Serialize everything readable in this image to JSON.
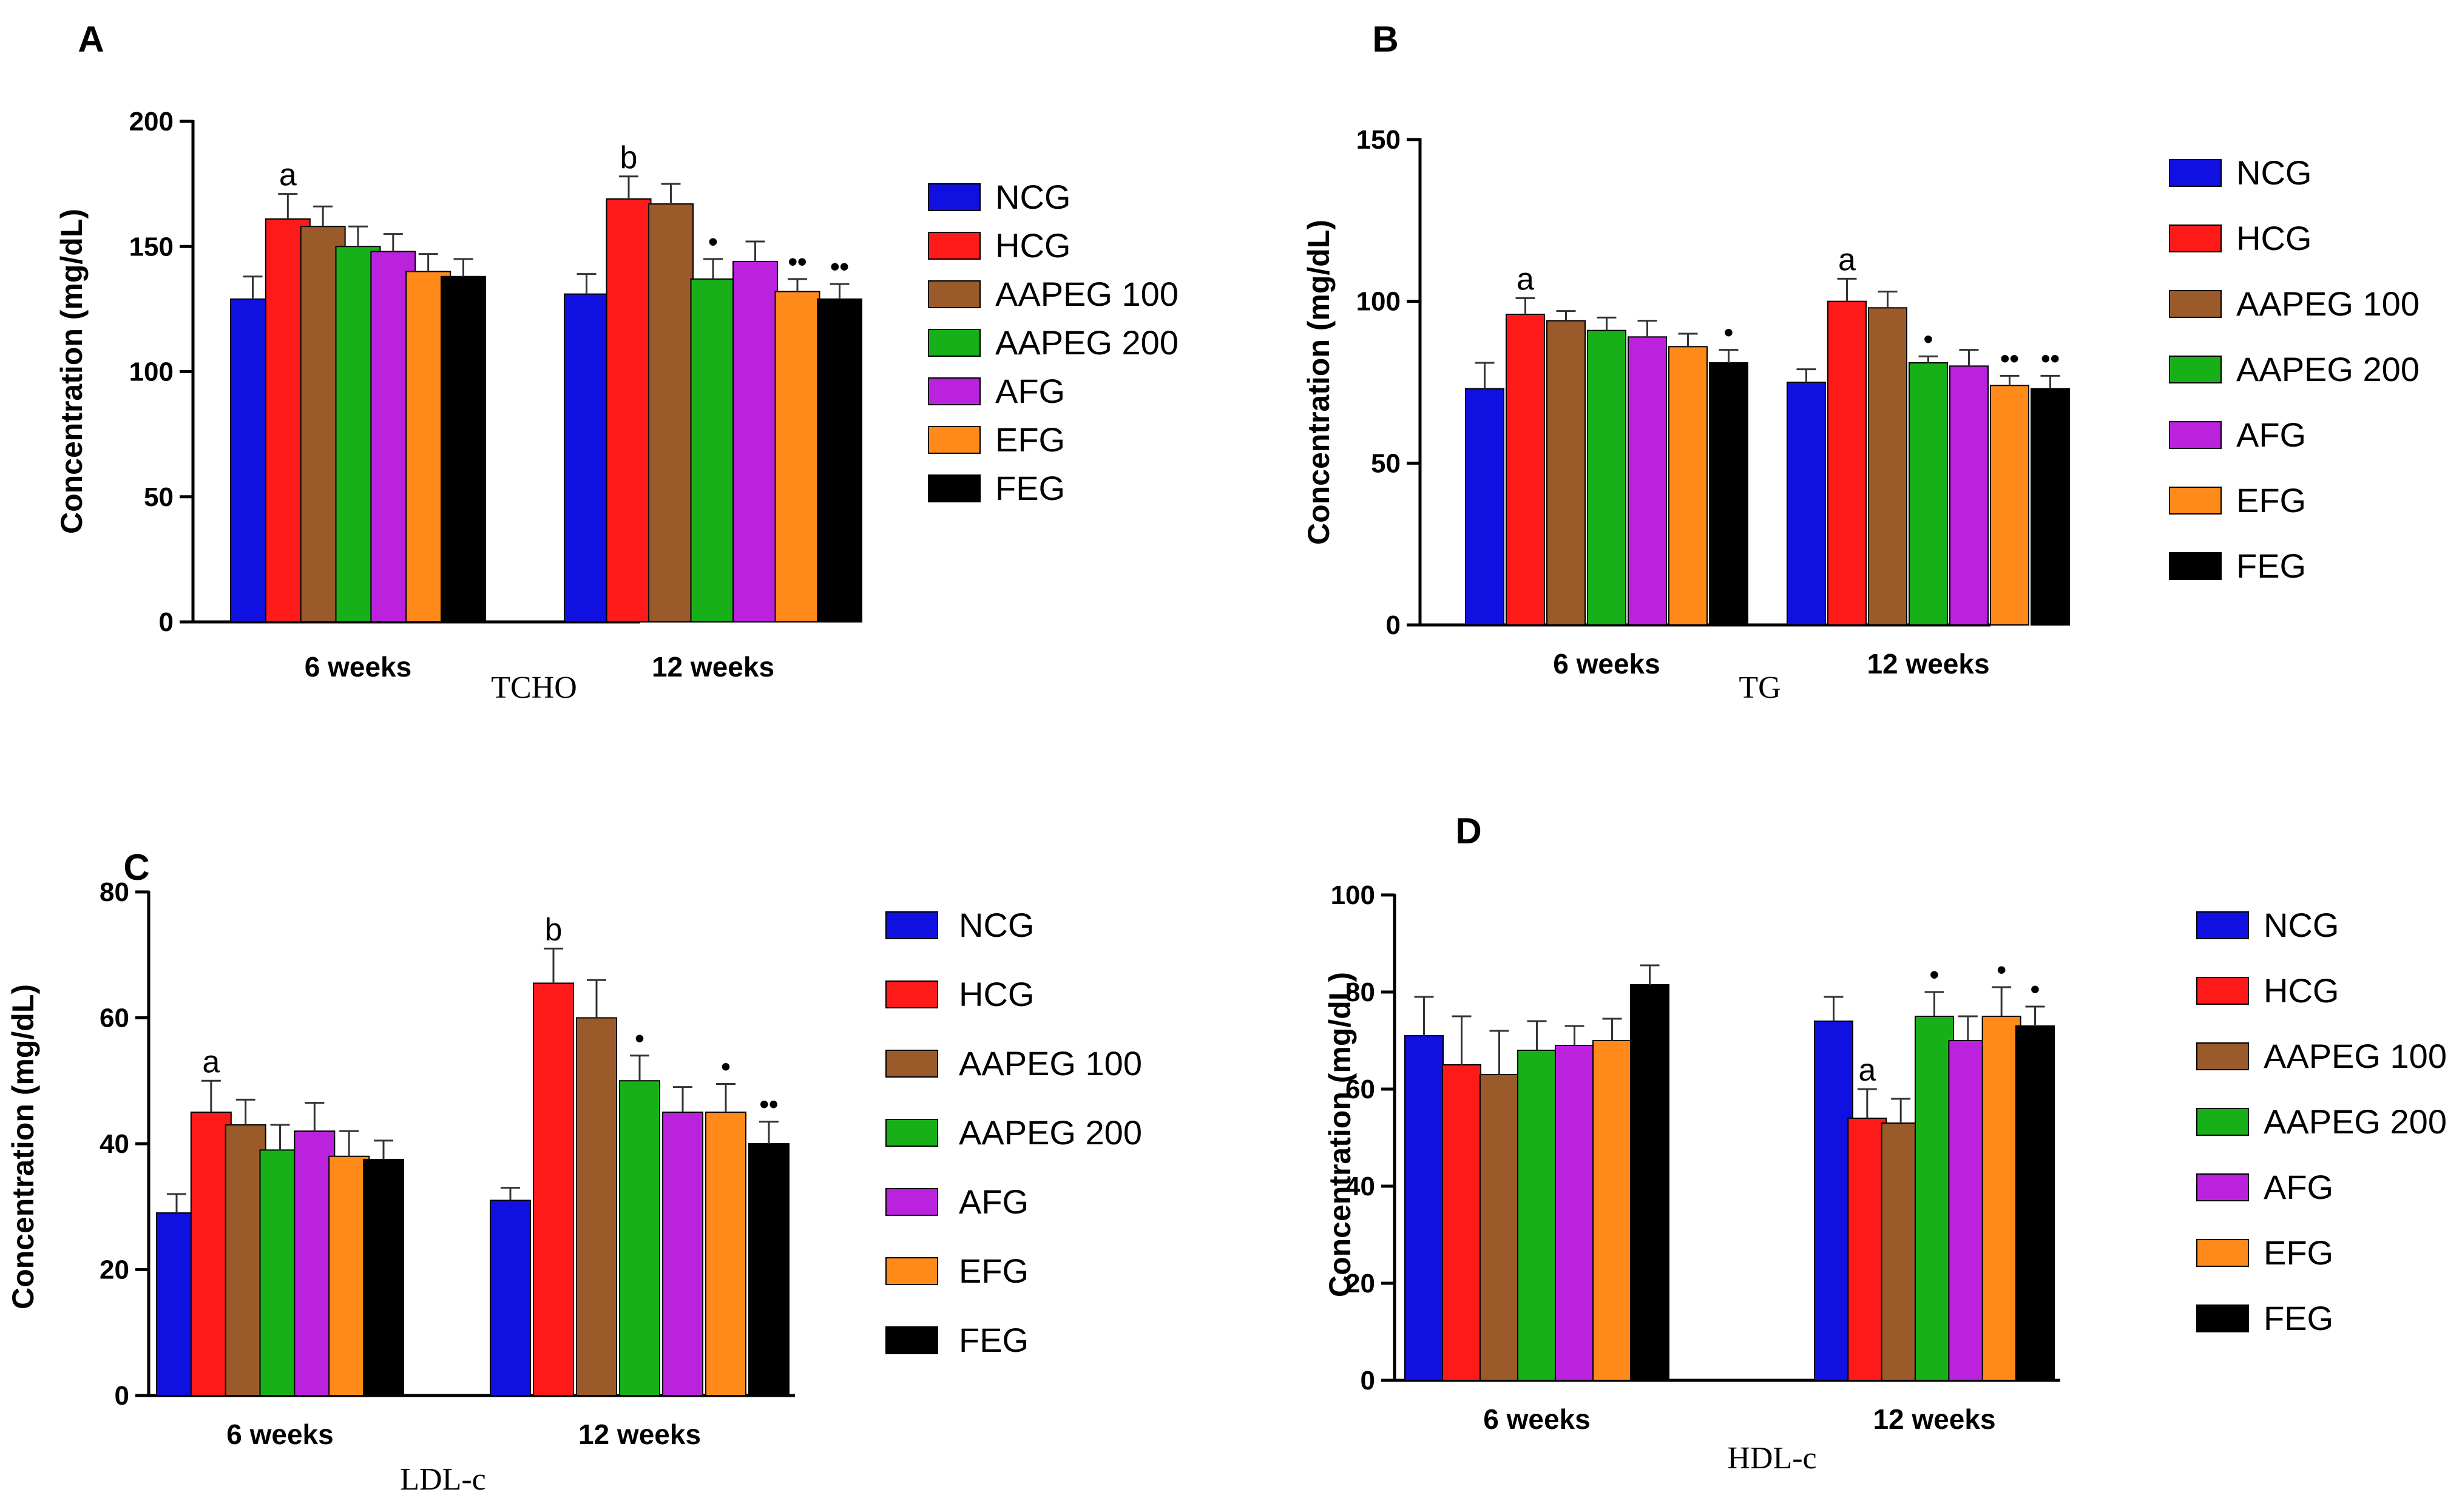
{
  "colors": {
    "NCG": "#1010e0",
    "HCG": "#ff1a1a",
    "AAPEG 100": "#9a5a2a",
    "AAPEG 200": "#18b018",
    "AFG": "#bb22dd",
    "EFG": "#ff8a1a",
    "FEG": "#000000"
  },
  "chart_data": [
    {
      "type": "bar",
      "panel": "A",
      "title": "TCHO",
      "xlabel": "",
      "ylabel": "Concentration (mg/dL)",
      "ylim": [
        0,
        200
      ],
      "yticks": [
        "0",
        "50",
        "100",
        "150",
        "200"
      ],
      "categories": [
        "6 weeks",
        "12 weeks"
      ],
      "series": [
        {
          "name": "NCG",
          "values": [
            129,
            131
          ],
          "errors": [
            9,
            8
          ],
          "annotations": [
            "",
            ""
          ]
        },
        {
          "name": "HCG",
          "values": [
            161,
            169
          ],
          "errors": [
            10,
            9
          ],
          "annotations": [
            "a",
            "b"
          ]
        },
        {
          "name": "AAPEG 100",
          "values": [
            158,
            167
          ],
          "errors": [
            8,
            8
          ],
          "annotations": [
            "",
            ""
          ]
        },
        {
          "name": "AAPEG 200",
          "values": [
            150,
            137
          ],
          "errors": [
            8,
            8
          ],
          "annotations": [
            "",
            "•"
          ]
        },
        {
          "name": "AFG",
          "values": [
            148,
            144
          ],
          "errors": [
            7,
            8
          ],
          "annotations": [
            "",
            ""
          ]
        },
        {
          "name": "EFG",
          "values": [
            140,
            132
          ],
          "errors": [
            7,
            5
          ],
          "annotations": [
            "",
            "••"
          ]
        },
        {
          "name": "FEG",
          "values": [
            138,
            129
          ],
          "errors": [
            7,
            6
          ],
          "annotations": [
            "",
            "••"
          ]
        }
      ]
    },
    {
      "type": "bar",
      "panel": "B",
      "title": "TG",
      "xlabel": "",
      "ylabel": "Concentration (mg/dL)",
      "ylim": [
        0,
        150
      ],
      "yticks": [
        "0",
        "50",
        "100",
        "150"
      ],
      "categories": [
        "6 weeks",
        "12 weeks"
      ],
      "series": [
        {
          "name": "NCG",
          "values": [
            73,
            75
          ],
          "errors": [
            8,
            4
          ],
          "annotations": [
            "",
            ""
          ]
        },
        {
          "name": "HCG",
          "values": [
            96,
            100
          ],
          "errors": [
            5,
            7
          ],
          "annotations": [
            "a",
            "a"
          ]
        },
        {
          "name": "AAPEG 100",
          "values": [
            94,
            98
          ],
          "errors": [
            3,
            5
          ],
          "annotations": [
            "",
            ""
          ]
        },
        {
          "name": "AAPEG 200",
          "values": [
            91,
            81
          ],
          "errors": [
            4,
            2
          ],
          "annotations": [
            "",
            "•"
          ]
        },
        {
          "name": "AFG",
          "values": [
            89,
            80
          ],
          "errors": [
            5,
            5
          ],
          "annotations": [
            "",
            ""
          ]
        },
        {
          "name": "EFG",
          "values": [
            86,
            74
          ],
          "errors": [
            4,
            3
          ],
          "annotations": [
            "",
            "••"
          ]
        },
        {
          "name": "FEG",
          "values": [
            81,
            73
          ],
          "errors": [
            4,
            4
          ],
          "annotations": [
            "•",
            "••"
          ]
        }
      ]
    },
    {
      "type": "bar",
      "panel": "C",
      "title": "LDL-c",
      "xlabel": "",
      "ylabel": "Concentration (mg/dL)",
      "ylim": [
        0,
        80
      ],
      "yticks": [
        "0",
        "20",
        "40",
        "60",
        "80"
      ],
      "categories": [
        "6 weeks",
        "12 weeks"
      ],
      "series": [
        {
          "name": "NCG",
          "values": [
            29,
            31
          ],
          "errors": [
            3,
            2
          ],
          "annotations": [
            "",
            ""
          ]
        },
        {
          "name": "HCG",
          "values": [
            45,
            65.5
          ],
          "errors": [
            5,
            5.5
          ],
          "annotations": [
            "a",
            "b"
          ]
        },
        {
          "name": "AAPEG 100",
          "values": [
            43,
            60
          ],
          "errors": [
            4,
            6
          ],
          "annotations": [
            "",
            ""
          ]
        },
        {
          "name": "AAPEG 200",
          "values": [
            39,
            50
          ],
          "errors": [
            4,
            4
          ],
          "annotations": [
            "",
            "•"
          ]
        },
        {
          "name": "AFG",
          "values": [
            42,
            45
          ],
          "errors": [
            4.5,
            4
          ],
          "annotations": [
            "",
            ""
          ]
        },
        {
          "name": "EFG",
          "values": [
            38,
            45
          ],
          "errors": [
            4,
            4.5
          ],
          "annotations": [
            "",
            "•"
          ]
        },
        {
          "name": "FEG",
          "values": [
            37.5,
            40
          ],
          "errors": [
            3,
            3.5
          ],
          "annotations": [
            "",
            "••"
          ]
        }
      ]
    },
    {
      "type": "bar",
      "panel": "D",
      "title": "HDL-c",
      "xlabel": "",
      "ylabel": "Concentration (mg/dL)",
      "ylim": [
        0,
        100
      ],
      "yticks": [
        "0",
        "20",
        "40",
        "60",
        "80",
        "100"
      ],
      "categories": [
        "6 weeks",
        "12 weeks"
      ],
      "series": [
        {
          "name": "NCG",
          "values": [
            71,
            74
          ],
          "errors": [
            8,
            5
          ],
          "annotations": [
            "",
            ""
          ]
        },
        {
          "name": "HCG",
          "values": [
            65,
            54
          ],
          "errors": [
            10,
            6
          ],
          "annotations": [
            "",
            "a"
          ]
        },
        {
          "name": "AAPEG 100",
          "values": [
            63,
            53
          ],
          "errors": [
            9,
            5
          ],
          "annotations": [
            "",
            ""
          ]
        },
        {
          "name": "AAPEG 200",
          "values": [
            68,
            75
          ],
          "errors": [
            6,
            5
          ],
          "annotations": [
            "",
            "•"
          ]
        },
        {
          "name": "AFG",
          "values": [
            69,
            70
          ],
          "errors": [
            4,
            5
          ],
          "annotations": [
            "",
            ""
          ]
        },
        {
          "name": "EFG",
          "values": [
            70,
            75
          ],
          "errors": [
            4.5,
            6
          ],
          "annotations": [
            "",
            "•"
          ]
        },
        {
          "name": "FEG",
          "values": [
            81.5,
            73
          ],
          "errors": [
            4,
            4
          ],
          "annotations": [
            "",
            "•"
          ]
        }
      ]
    }
  ]
}
